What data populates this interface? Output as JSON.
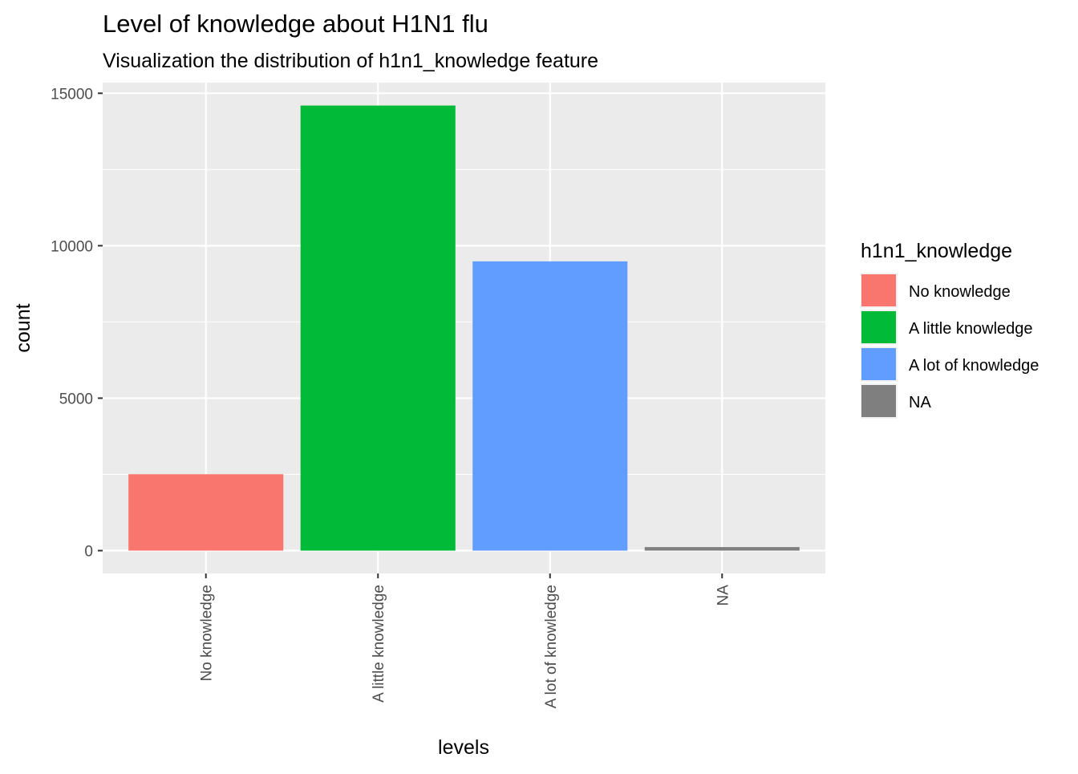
{
  "chart_data": {
    "type": "bar",
    "title": "Level of knowledge about H1N1 flu",
    "subtitle": "Visualization the distribution of h1n1_knowledge feature",
    "xlabel": "levels",
    "ylabel": "count",
    "categories": [
      "No knowledge",
      "A little knowledge",
      "A lot of knowledge",
      "NA"
    ],
    "values": [
      2506,
      14598,
      9487,
      116
    ],
    "colors": [
      "#F8766D",
      "#00BA38",
      "#619CFF",
      "#7F7F7F"
    ],
    "ylim": [
      -750,
      15350
    ],
    "yticks": [
      0,
      5000,
      10000,
      15000
    ],
    "ytick_labels": [
      "0",
      "5000",
      "10000",
      "15000"
    ],
    "grid": true,
    "panel_background": "#EBEBEB",
    "legend": {
      "title": "h1n1_knowledge",
      "position": "right",
      "items": [
        "No knowledge",
        "A little knowledge",
        "A lot of knowledge",
        "NA"
      ]
    }
  }
}
